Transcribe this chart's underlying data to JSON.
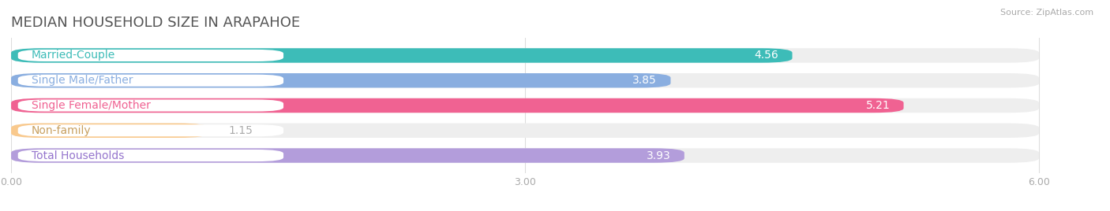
{
  "title": "MEDIAN HOUSEHOLD SIZE IN ARAPAHOE",
  "source": "Source: ZipAtlas.com",
  "categories": [
    "Married-Couple",
    "Single Male/Father",
    "Single Female/Mother",
    "Non-family",
    "Total Households"
  ],
  "values": [
    4.56,
    3.85,
    5.21,
    1.15,
    3.93
  ],
  "bar_colors": [
    "#3dbcb8",
    "#8aaee0",
    "#f06292",
    "#f9c98d",
    "#b39ddb"
  ],
  "bar_bg_colors": [
    "#eeeeee",
    "#eeeeee",
    "#eeeeee",
    "#eeeeee",
    "#eeeeee"
  ],
  "label_bg_color": "#ffffff",
  "label_text_colors": [
    "#3dbcb8",
    "#8aaee0",
    "#f06292",
    "#c8a060",
    "#9575cd"
  ],
  "xlim": [
    0,
    6.35
  ],
  "xlim_display": 6.0,
  "xticks": [
    0.0,
    3.0,
    6.0
  ],
  "xtick_labels": [
    "0.00",
    "3.00",
    "6.00"
  ],
  "background_color": "#ffffff",
  "title_fontsize": 13,
  "label_fontsize": 10,
  "value_fontsize": 10
}
